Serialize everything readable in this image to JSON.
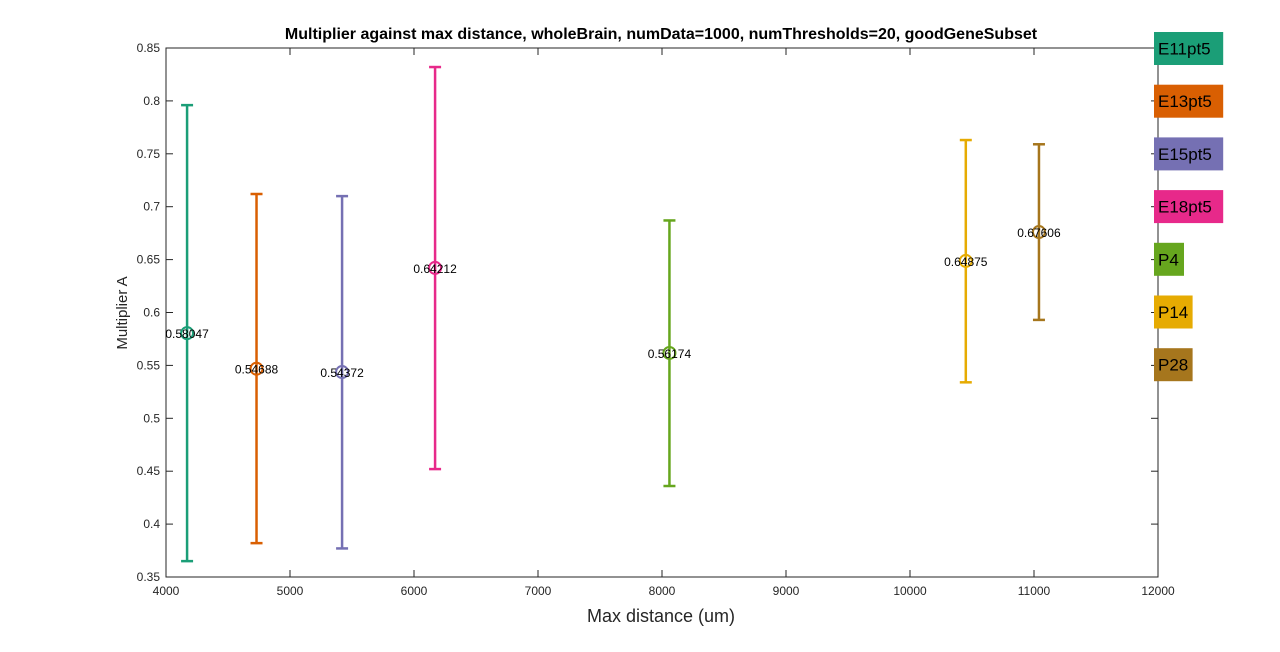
{
  "chart_data": {
    "type": "scatter",
    "title": "Multiplier against max distance, wholeBrain, numData=1000, numThresholds=20, goodGeneSubset",
    "xlabel": "Max distance (um)",
    "ylabel": "Multiplier A",
    "xlim": [
      4000,
      12000
    ],
    "ylim": [
      0.35,
      0.85
    ],
    "xticks": [
      4000,
      5000,
      6000,
      7000,
      8000,
      9000,
      10000,
      11000,
      12000
    ],
    "yticks": [
      0.35,
      0.4,
      0.45,
      0.5,
      0.55,
      0.6,
      0.65,
      0.7,
      0.75,
      0.8,
      0.85
    ],
    "xtick_labels": [
      "4000",
      "5000",
      "6000",
      "7000",
      "8000",
      "9000",
      "10000",
      "11000",
      "12000"
    ],
    "ytick_labels": [
      "0.35",
      "0.4",
      "0.45",
      "0.5",
      "0.55",
      "0.6",
      "0.65",
      "0.7",
      "0.75",
      "0.8",
      "0.85"
    ],
    "grid": false,
    "legend_placement": "right-outside",
    "marker": "circle with vertical error bar",
    "series": [
      {
        "name": "E11pt5",
        "color": "#1b9e77",
        "x": 4170,
        "y": 0.58047,
        "y_low": 0.365,
        "y_high": 0.796,
        "label": "0.58047"
      },
      {
        "name": "E13pt5",
        "color": "#d95f02",
        "x": 4730,
        "y": 0.54688,
        "y_low": 0.382,
        "y_high": 0.712,
        "label": "0.54688"
      },
      {
        "name": "E15pt5",
        "color": "#7570b3",
        "x": 5420,
        "y": 0.54372,
        "y_low": 0.377,
        "y_high": 0.71,
        "label": "0.54372"
      },
      {
        "name": "E18pt5",
        "color": "#e7298a",
        "x": 6170,
        "y": 0.64212,
        "y_low": 0.452,
        "y_high": 0.832,
        "label": "0.64212"
      },
      {
        "name": "P4",
        "color": "#66a61e",
        "x": 8060,
        "y": 0.56174,
        "y_low": 0.436,
        "y_high": 0.687,
        "label": "0.56174"
      },
      {
        "name": "P14",
        "color": "#e6ab02",
        "x": 10450,
        "y": 0.64875,
        "y_low": 0.534,
        "y_high": 0.763,
        "label": "0.64875"
      },
      {
        "name": "P28",
        "color": "#a6761d",
        "x": 11040,
        "y": 0.67606,
        "y_low": 0.593,
        "y_high": 0.759,
        "label": "0.67606"
      }
    ]
  }
}
